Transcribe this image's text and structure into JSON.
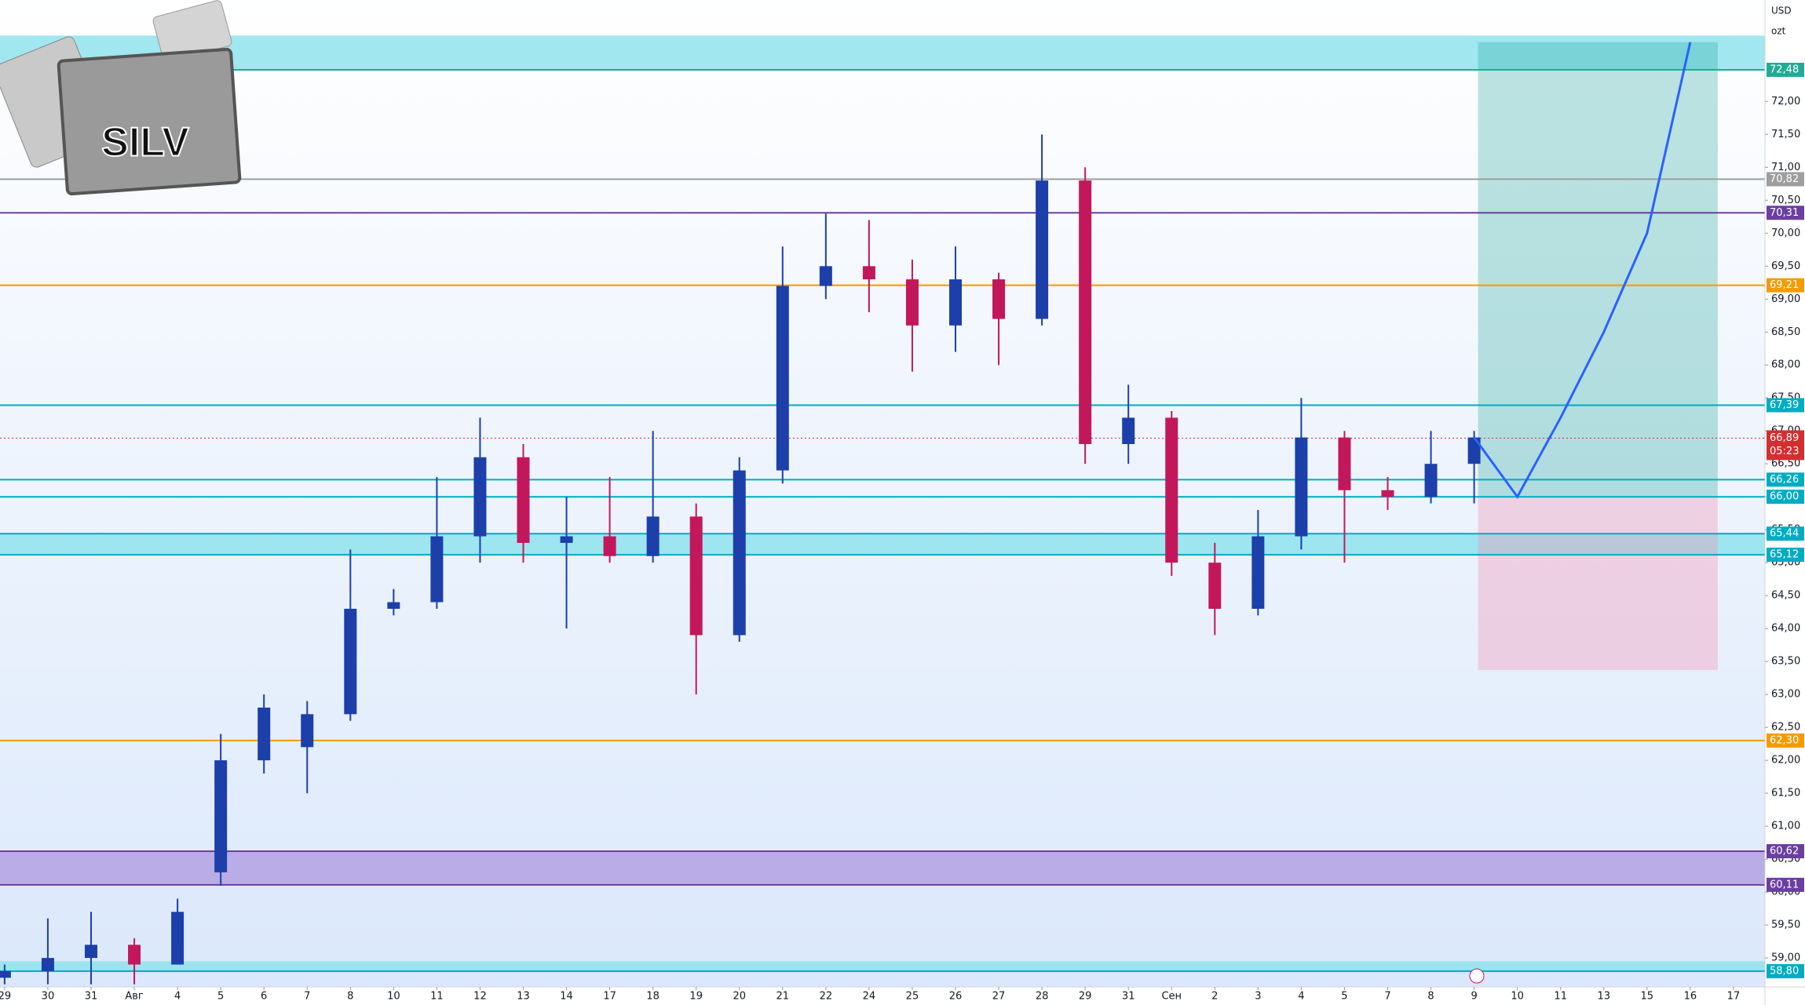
{
  "chart_data": {
    "type": "candlestick",
    "logo": "SILV",
    "currency": "USD",
    "unit": "ozt",
    "categories": [
      "29",
      "30",
      "31",
      "Авг",
      "4",
      "5",
      "6",
      "7",
      "8",
      "10",
      "11",
      "12",
      "13",
      "14",
      "17",
      "18",
      "19",
      "20",
      "21",
      "22",
      "24",
      "25",
      "26",
      "27",
      "28",
      "29",
      "31",
      "Сен",
      "2",
      "3",
      "4",
      "5",
      "7",
      "8",
      "9",
      "10",
      "11",
      "13",
      "15",
      "16",
      "17"
    ],
    "open": [
      58.7,
      58.8,
      59.0,
      59.2,
      58.9,
      60.3,
      62.0,
      62.2,
      62.7,
      64.3,
      64.4,
      65.4,
      66.6,
      65.3,
      65.4,
      65.1,
      65.7,
      63.9,
      66.4,
      69.2,
      69.5,
      69.3,
      68.6,
      69.3,
      68.7,
      70.8,
      66.8,
      67.2,
      65.0,
      64.3,
      65.4,
      66.9,
      66.1,
      66.0,
      66.5,
      null,
      null,
      null,
      null,
      null,
      null
    ],
    "high": [
      58.9,
      59.6,
      59.7,
      59.3,
      59.9,
      62.4,
      63.0,
      62.9,
      65.2,
      64.6,
      66.3,
      67.2,
      66.8,
      66.0,
      66.3,
      67.0,
      65.9,
      66.6,
      69.8,
      70.3,
      70.2,
      69.6,
      69.8,
      69.4,
      71.5,
      71.0,
      67.7,
      67.3,
      65.3,
      65.8,
      67.5,
      67.0,
      66.3,
      67.0,
      67.0,
      null,
      null,
      null,
      null,
      null,
      null
    ],
    "low": [
      58.6,
      58.6,
      58.6,
      58.6,
      58.9,
      60.1,
      61.8,
      61.5,
      62.6,
      64.2,
      64.3,
      65.0,
      65.0,
      64.0,
      65.0,
      65.0,
      63.0,
      63.8,
      66.2,
      69.0,
      68.8,
      67.9,
      68.2,
      68.0,
      68.6,
      66.5,
      66.5,
      64.8,
      63.9,
      64.2,
      65.2,
      65.0,
      65.8,
      65.9,
      65.9,
      null,
      null,
      null,
      null,
      null,
      null
    ],
    "close": [
      58.8,
      59.0,
      59.2,
      58.9,
      59.7,
      62.0,
      62.8,
      62.7,
      64.3,
      64.4,
      65.4,
      66.6,
      65.3,
      65.4,
      65.1,
      65.7,
      63.9,
      66.4,
      69.2,
      69.5,
      69.3,
      68.6,
      69.3,
      68.7,
      70.8,
      66.8,
      67.2,
      65.0,
      64.3,
      65.4,
      66.9,
      66.1,
      66.0,
      66.5,
      66.9,
      null,
      null,
      null,
      null,
      null,
      null
    ],
    "up_color": "#1c3faa",
    "down_color": "#c2185b",
    "projection": {
      "color": "#2962ff",
      "values": [
        null,
        null,
        null,
        null,
        null,
        null,
        null,
        null,
        null,
        null,
        null,
        null,
        null,
        null,
        null,
        null,
        null,
        null,
        null,
        null,
        null,
        null,
        null,
        null,
        null,
        null,
        null,
        null,
        null,
        null,
        null,
        null,
        null,
        null,
        66.9,
        66.0,
        67.2,
        68.5,
        70.0,
        72.9,
        null
      ]
    },
    "position": {
      "target": 72.9,
      "entry": 66.0,
      "stop": 63.37
    },
    "ylim": [
      58.56,
      73.54
    ],
    "yticks": [
      {
        "value": 59.0,
        "label": "59,00"
      },
      {
        "value": 59.5,
        "label": "59,50"
      },
      {
        "value": 60.0,
        "label": "60,00"
      },
      {
        "value": 60.5,
        "label": "60,50"
      },
      {
        "value": 61.0,
        "label": "61,00"
      },
      {
        "value": 61.5,
        "label": "61,50"
      },
      {
        "value": 62.0,
        "label": "62,00"
      },
      {
        "value": 62.5,
        "label": "62,50"
      },
      {
        "value": 63.0,
        "label": "63,00"
      },
      {
        "value": 63.5,
        "label": "63,50"
      },
      {
        "value": 64.0,
        "label": "64,00"
      },
      {
        "value": 64.5,
        "label": "64,50"
      },
      {
        "value": 65.0,
        "label": "65,00"
      },
      {
        "value": 65.5,
        "label": "65,50"
      },
      {
        "value": 66.0,
        "label": "66,00"
      },
      {
        "value": 66.5,
        "label": "66,50"
      },
      {
        "value": 67.0,
        "label": "67,00"
      },
      {
        "value": 67.5,
        "label": "67,50"
      },
      {
        "value": 68.0,
        "label": "68,00"
      },
      {
        "value": 68.5,
        "label": "68,50"
      },
      {
        "value": 69.0,
        "label": "69,00"
      },
      {
        "value": 69.5,
        "label": "69,50"
      },
      {
        "value": 70.0,
        "label": "70,00"
      },
      {
        "value": 70.5,
        "label": "70,50"
      },
      {
        "value": 71.0,
        "label": "71,00"
      },
      {
        "value": 71.5,
        "label": "71,50"
      },
      {
        "value": 72.0,
        "label": "72,00"
      }
    ],
    "zones": [
      {
        "from": 72.48,
        "to": 73.0,
        "color": "#8fe3ec"
      },
      {
        "from": 65.12,
        "to": 65.44,
        "color": "#8fe3ec"
      },
      {
        "from": 60.11,
        "to": 60.62,
        "color": "#b3a1e3"
      },
      {
        "from": 58.8,
        "to": 58.95,
        "color": "#8fe3ec"
      }
    ],
    "levels": [
      {
        "value": 72.48,
        "label": "72,48",
        "color": "#22ab94"
      },
      {
        "value": 70.82,
        "label": "70,82",
        "color": "#9e9e9e"
      },
      {
        "value": 70.31,
        "label": "70,31",
        "color": "#6a3fa0"
      },
      {
        "value": 69.21,
        "label": "69,21",
        "color": "#f59b00"
      },
      {
        "value": 67.39,
        "label": "67,39",
        "color": "#00acc1"
      },
      {
        "value": 66.26,
        "label": "66,26",
        "color": "#00acc1"
      },
      {
        "value": 66.0,
        "label": "66,00",
        "color": "#00acc1"
      },
      {
        "value": 65.44,
        "label": "65,44",
        "color": "#00acc1"
      },
      {
        "value": 65.12,
        "label": "65,12",
        "color": "#00acc1"
      },
      {
        "value": 62.3,
        "label": "62,30",
        "color": "#f59b00"
      },
      {
        "value": 60.62,
        "label": "60,62",
        "color": "#6a3fa0"
      },
      {
        "value": 60.11,
        "label": "60,11",
        "color": "#6a3fa0"
      },
      {
        "value": 58.8,
        "label": "58,80",
        "color": "#00acc1"
      }
    ],
    "last_price": {
      "value": 66.89,
      "label": "66,89",
      "countdown": "05:23",
      "color": "#d32f2f"
    }
  }
}
